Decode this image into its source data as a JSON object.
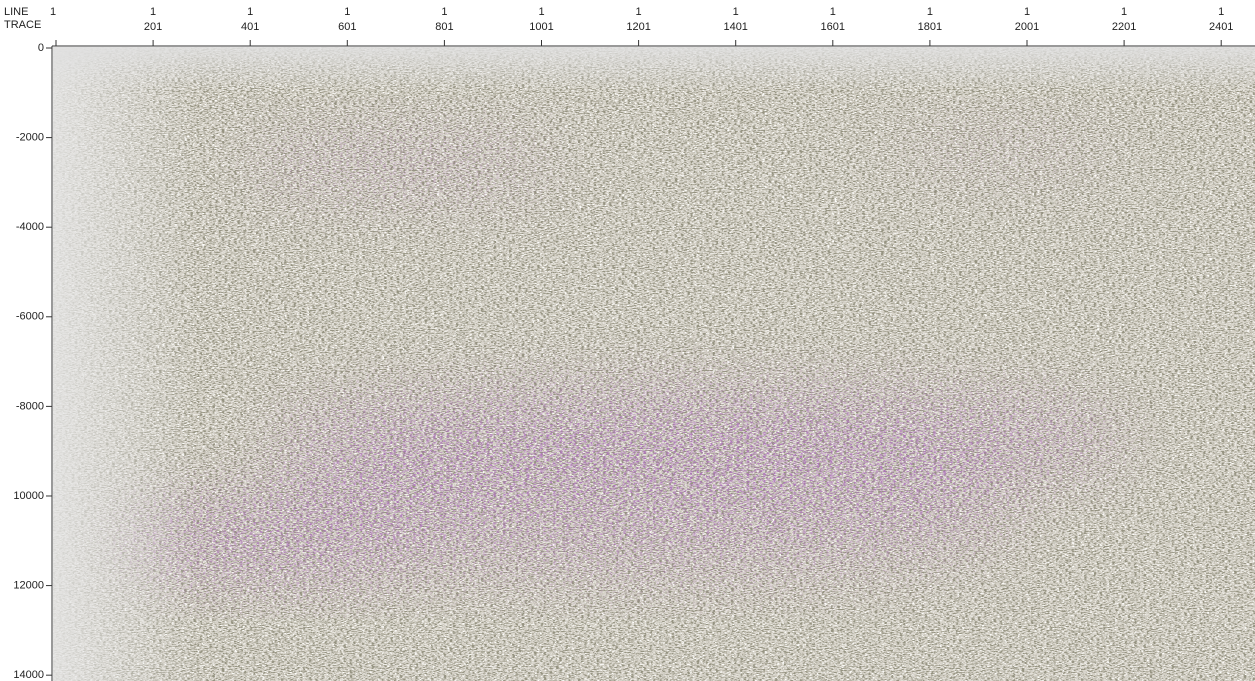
{
  "chart_data": {
    "type": "seismic",
    "x_axis_labels": [
      "LINE",
      "TRACE"
    ],
    "line_number": 1,
    "xlim": [
      1,
      2471
    ],
    "xticks": [
      201,
      401,
      601,
      801,
      1001,
      1201,
      1401,
      1601,
      1801,
      2001,
      2201,
      2401
    ],
    "ylim": [
      0,
      -14130
    ],
    "yticks": [
      0,
      -2000,
      -4000,
      -6000,
      -8000,
      {
        "value": -10000,
        "label": "10000"
      },
      {
        "value": -12000,
        "label": "12000"
      },
      {
        "value": -14000,
        "label": "14000"
      }
    ]
  }
}
